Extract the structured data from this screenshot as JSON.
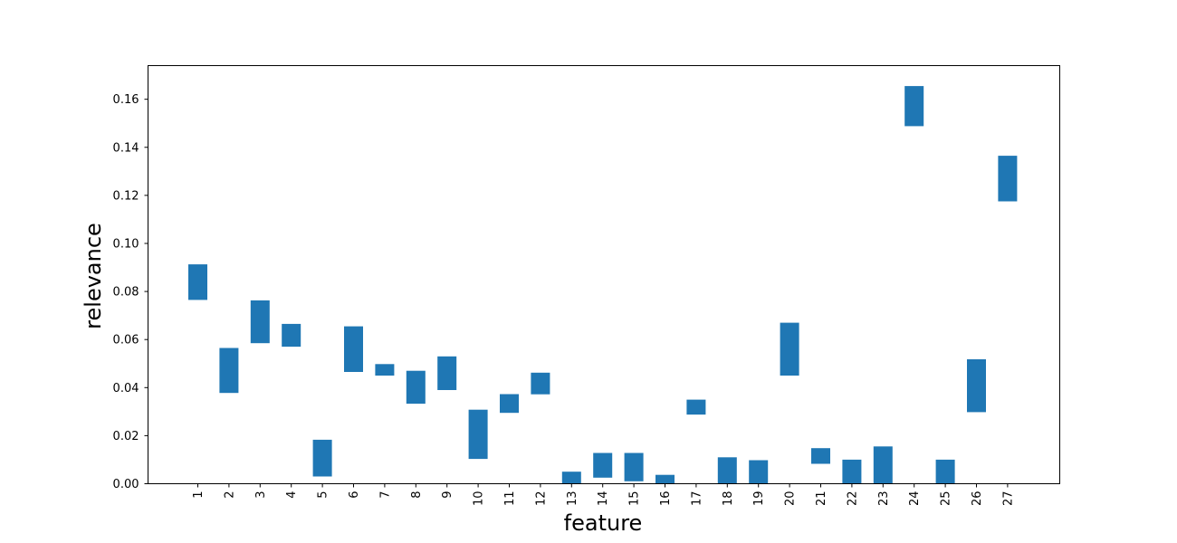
{
  "chart_data": {
    "type": "bar",
    "title": "",
    "xlabel": "feature",
    "ylabel": "relevance",
    "ylim": [
      0.0,
      0.174
    ],
    "grid": false,
    "bar_color": "#1f77b4",
    "y_ticks": [
      0.0,
      0.02,
      0.04,
      0.06,
      0.08,
      0.1,
      0.12,
      0.14,
      0.16
    ],
    "y_tick_labels": [
      "0.00",
      "0.02",
      "0.04",
      "0.06",
      "0.08",
      "0.10",
      "0.12",
      "0.14",
      "0.16"
    ],
    "categories": [
      "1",
      "2",
      "3",
      "4",
      "5",
      "6",
      "7",
      "8",
      "9",
      "10",
      "11",
      "12",
      "13",
      "14",
      "15",
      "16",
      "17",
      "18",
      "19",
      "20",
      "21",
      "22",
      "23",
      "24",
      "25",
      "26",
      "27"
    ],
    "bottoms": [
      0.0765,
      0.0378,
      0.0585,
      0.057,
      0.003,
      0.0465,
      0.045,
      0.0333,
      0.039,
      0.0103,
      0.0295,
      0.0372,
      0.0,
      0.0025,
      0.001,
      0.0,
      0.0288,
      0.0,
      0.0,
      0.045,
      0.0083,
      0.0,
      0.0,
      0.1488,
      0.0,
      0.0298,
      0.1175
    ],
    "tops": [
      0.0913,
      0.0565,
      0.0763,
      0.0665,
      0.0183,
      0.0655,
      0.0498,
      0.047,
      0.053,
      0.0308,
      0.0373,
      0.0462,
      0.005,
      0.0128,
      0.0128,
      0.0037,
      0.035,
      0.011,
      0.0098,
      0.067,
      0.0148,
      0.01,
      0.0155,
      0.1655,
      0.01,
      0.0518,
      0.1365
    ]
  }
}
